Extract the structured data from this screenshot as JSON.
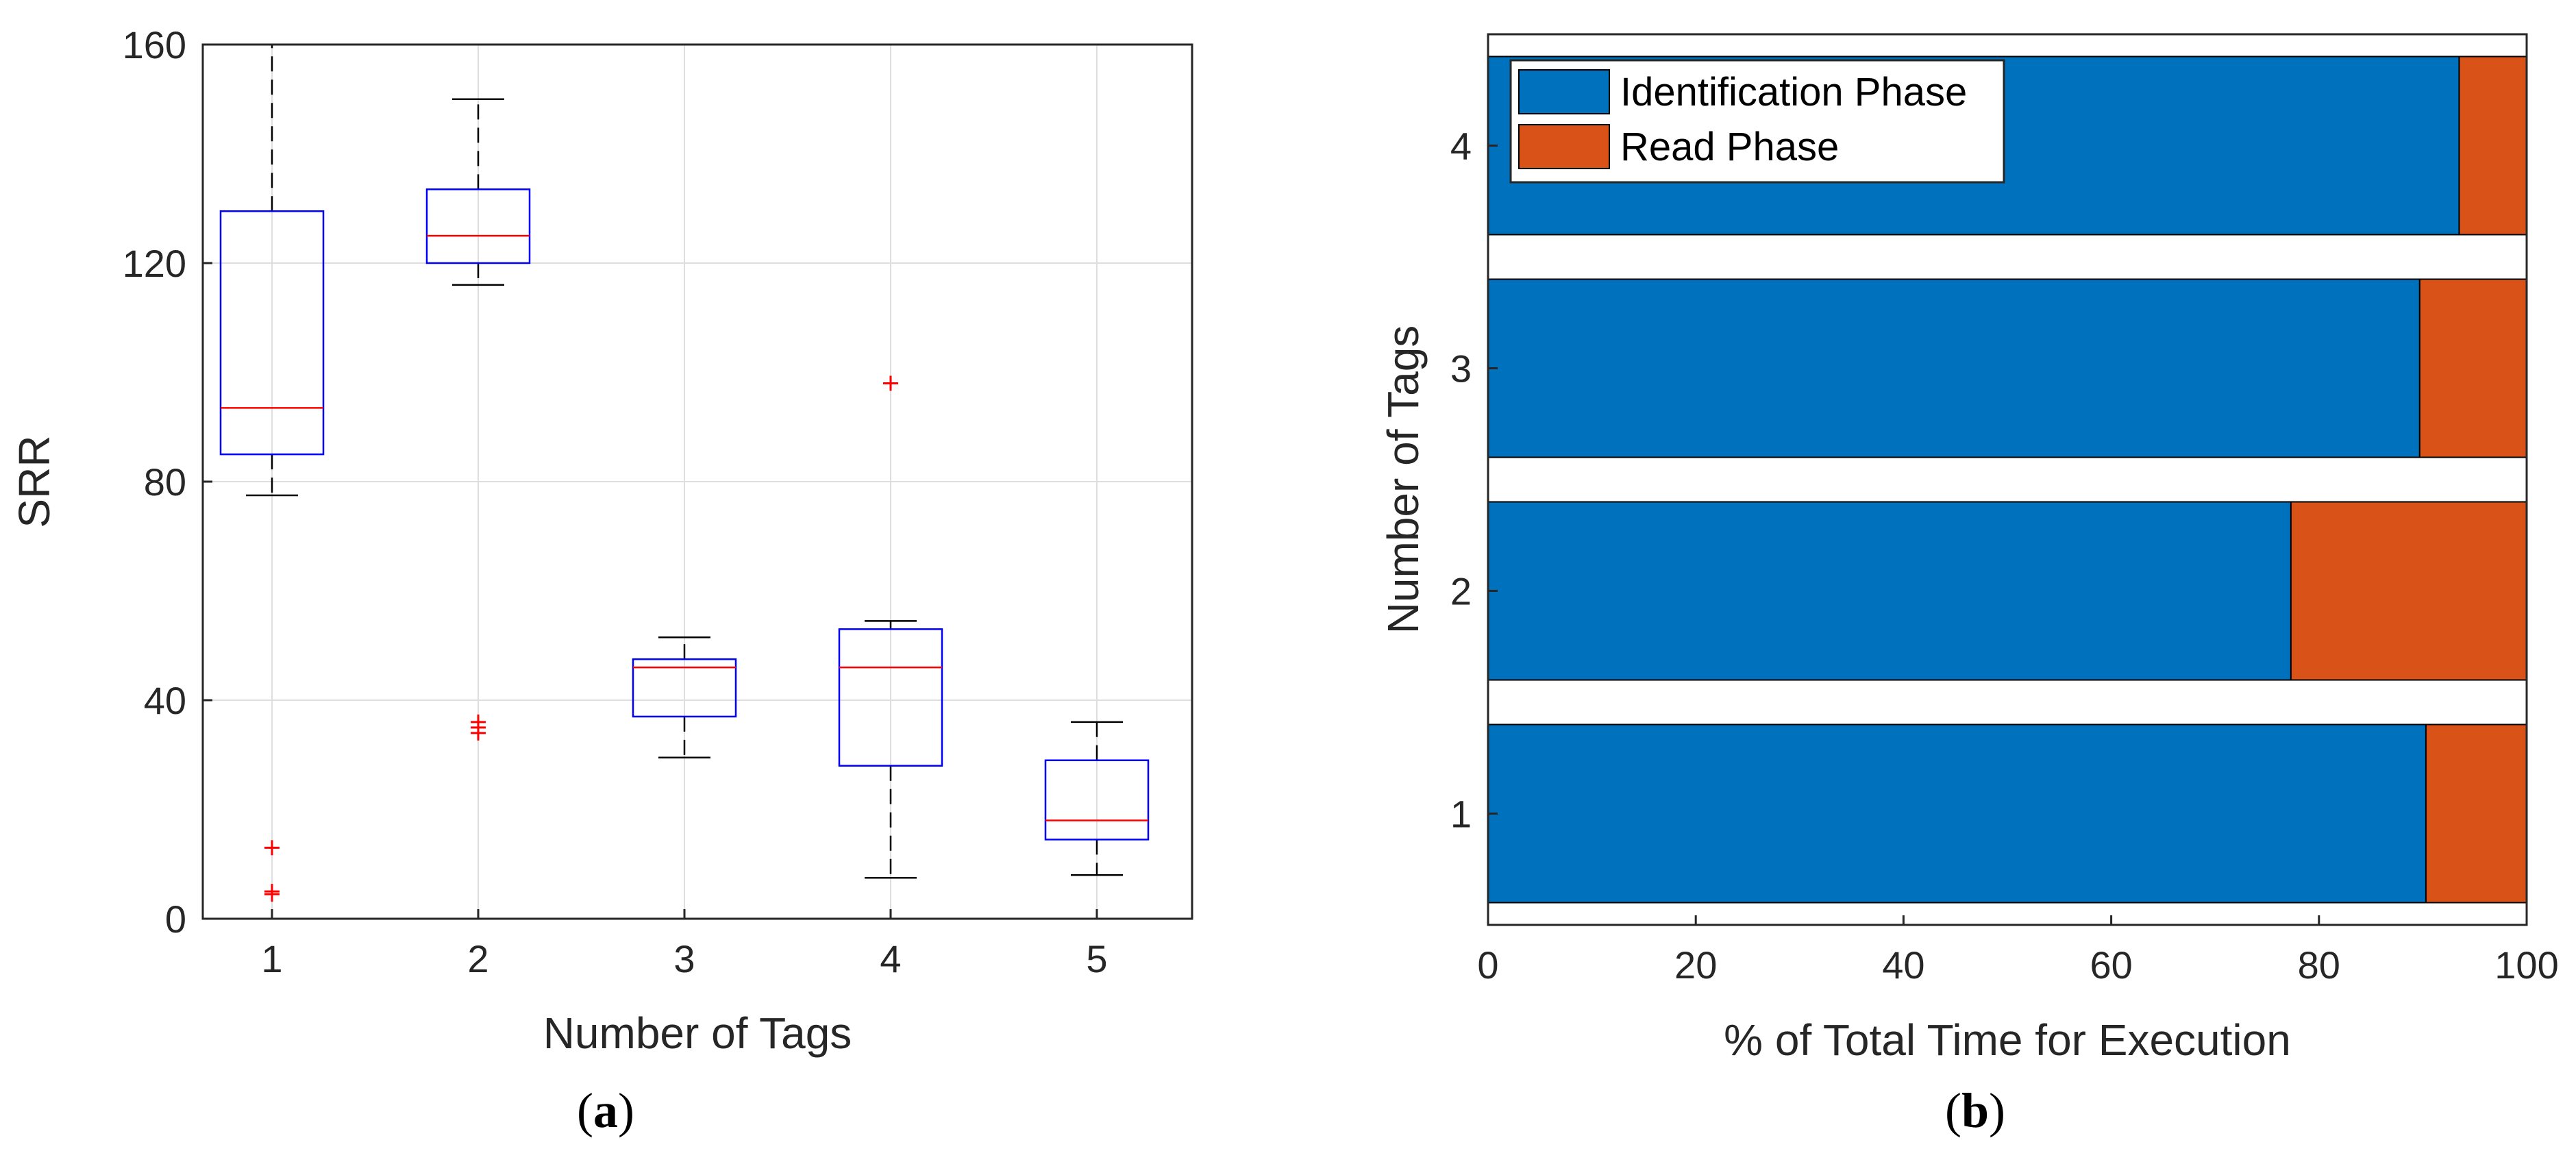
{
  "chart_data": [
    {
      "type": "box",
      "caption_letter": "a",
      "title": "",
      "xlabel": "Number of Tags",
      "ylabel": "SRR",
      "ylim": [
        0,
        160
      ],
      "yticks": [
        0,
        40,
        80,
        120,
        160
      ],
      "grid": true,
      "colors": {
        "box": "#0000ff",
        "median": "#ff0000",
        "whisker": "#000000",
        "outlier": "#ff0000",
        "grid": "#dedede"
      },
      "categories": [
        "1",
        "2",
        "3",
        "4",
        "5"
      ],
      "boxes": [
        {
          "category": "1",
          "lower_whisker": 77.5,
          "q1": 85,
          "median": 93.5,
          "q3": 129.5,
          "upper_whisker": 160,
          "outliers": [
            4.5,
            5,
            13
          ]
        },
        {
          "category": "2",
          "lower_whisker": 116,
          "q1": 120,
          "median": 125,
          "q3": 133.5,
          "upper_whisker": 150,
          "outliers": [
            34,
            35,
            36
          ]
        },
        {
          "category": "3",
          "lower_whisker": 29.5,
          "q1": 37,
          "median": 46,
          "q3": 47.5,
          "upper_whisker": 51.5,
          "outliers": []
        },
        {
          "category": "4",
          "lower_whisker": 7.5,
          "q1": 28,
          "median": 46,
          "q3": 53,
          "upper_whisker": 54.5,
          "outliers": [
            98
          ]
        },
        {
          "category": "5",
          "lower_whisker": 8,
          "q1": 14.5,
          "median": 18,
          "q3": 29,
          "upper_whisker": 36,
          "outliers": []
        }
      ]
    },
    {
      "type": "bar",
      "orientation": "horizontal",
      "stacked": true,
      "caption_letter": "b",
      "title": "",
      "xlabel": "% of Total Time for Execution",
      "ylabel": "Number of Tags",
      "xlim": [
        0,
        100
      ],
      "xticks": [
        0,
        20,
        40,
        60,
        80,
        100
      ],
      "categories": [
        "1",
        "2",
        "3",
        "4"
      ],
      "legend_position": "top-left",
      "series": [
        {
          "name": "Identification Phase",
          "color": "#0072bd",
          "values": [
            90.3,
            77.3,
            89.7,
            93.5
          ]
        },
        {
          "name": "Read Phase",
          "color": "#d95319",
          "values": [
            9.7,
            22.7,
            10.3,
            6.5
          ]
        }
      ]
    }
  ]
}
